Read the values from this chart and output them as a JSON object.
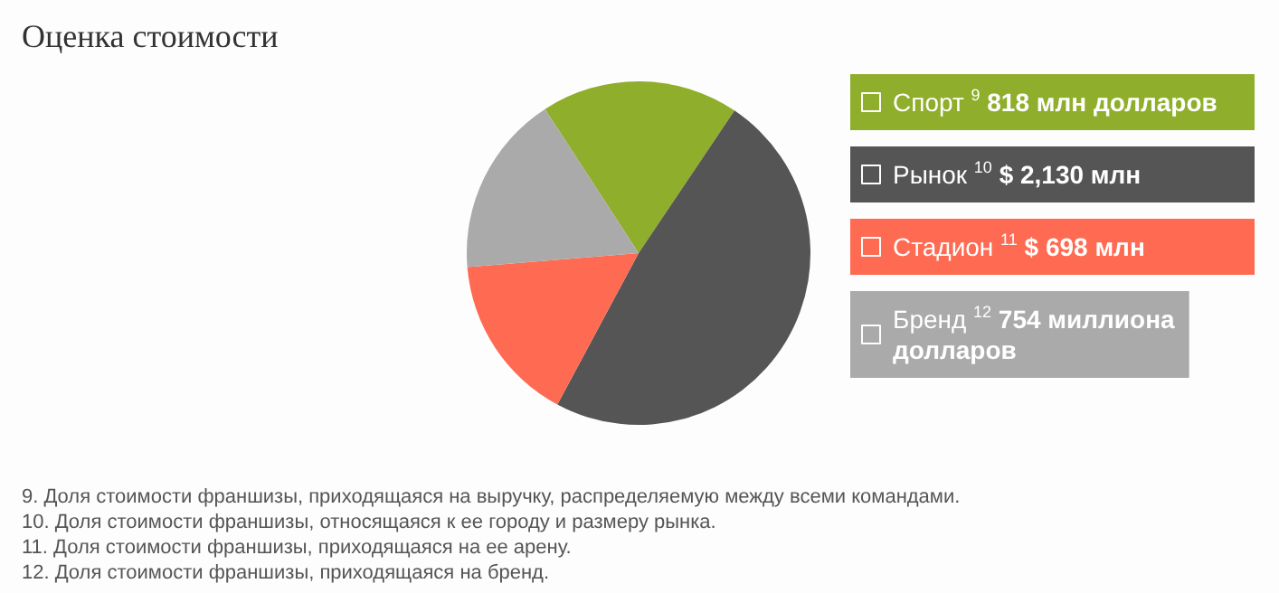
{
  "chart_data": {
    "type": "pie",
    "title": "Оценка стоимости",
    "categories": [
      "Спорт $^{9}$",
      "Рынок $^{10}$",
      "Стадион $^{11}$",
      "Бренд $^{12}$"
    ],
    "values": [
      818,
      2130,
      698,
      754
    ],
    "value_labels": [
      "818 млн долларов",
      "$ 2,130 млн",
      "$ 698 млн",
      "754 миллиона долларов"
    ],
    "colors": [
      "#8fae2b",
      "#555555",
      "#ff6a52",
      "#aaaaaa"
    ],
    "legend": "right",
    "annotations": [
      "9. Доля стоимости франшизы, приходящаяся на выручку, распределяемую между всеми командами.",
      "10. Доля стоимости франшизы, относящаяся к ее городу и размеру рынка.",
      "11. Доля стоимости франшизы, приходящаяся на ее арену.",
      "12. Доля стоимости франшизы, приходящаяся на бренд."
    ]
  }
}
